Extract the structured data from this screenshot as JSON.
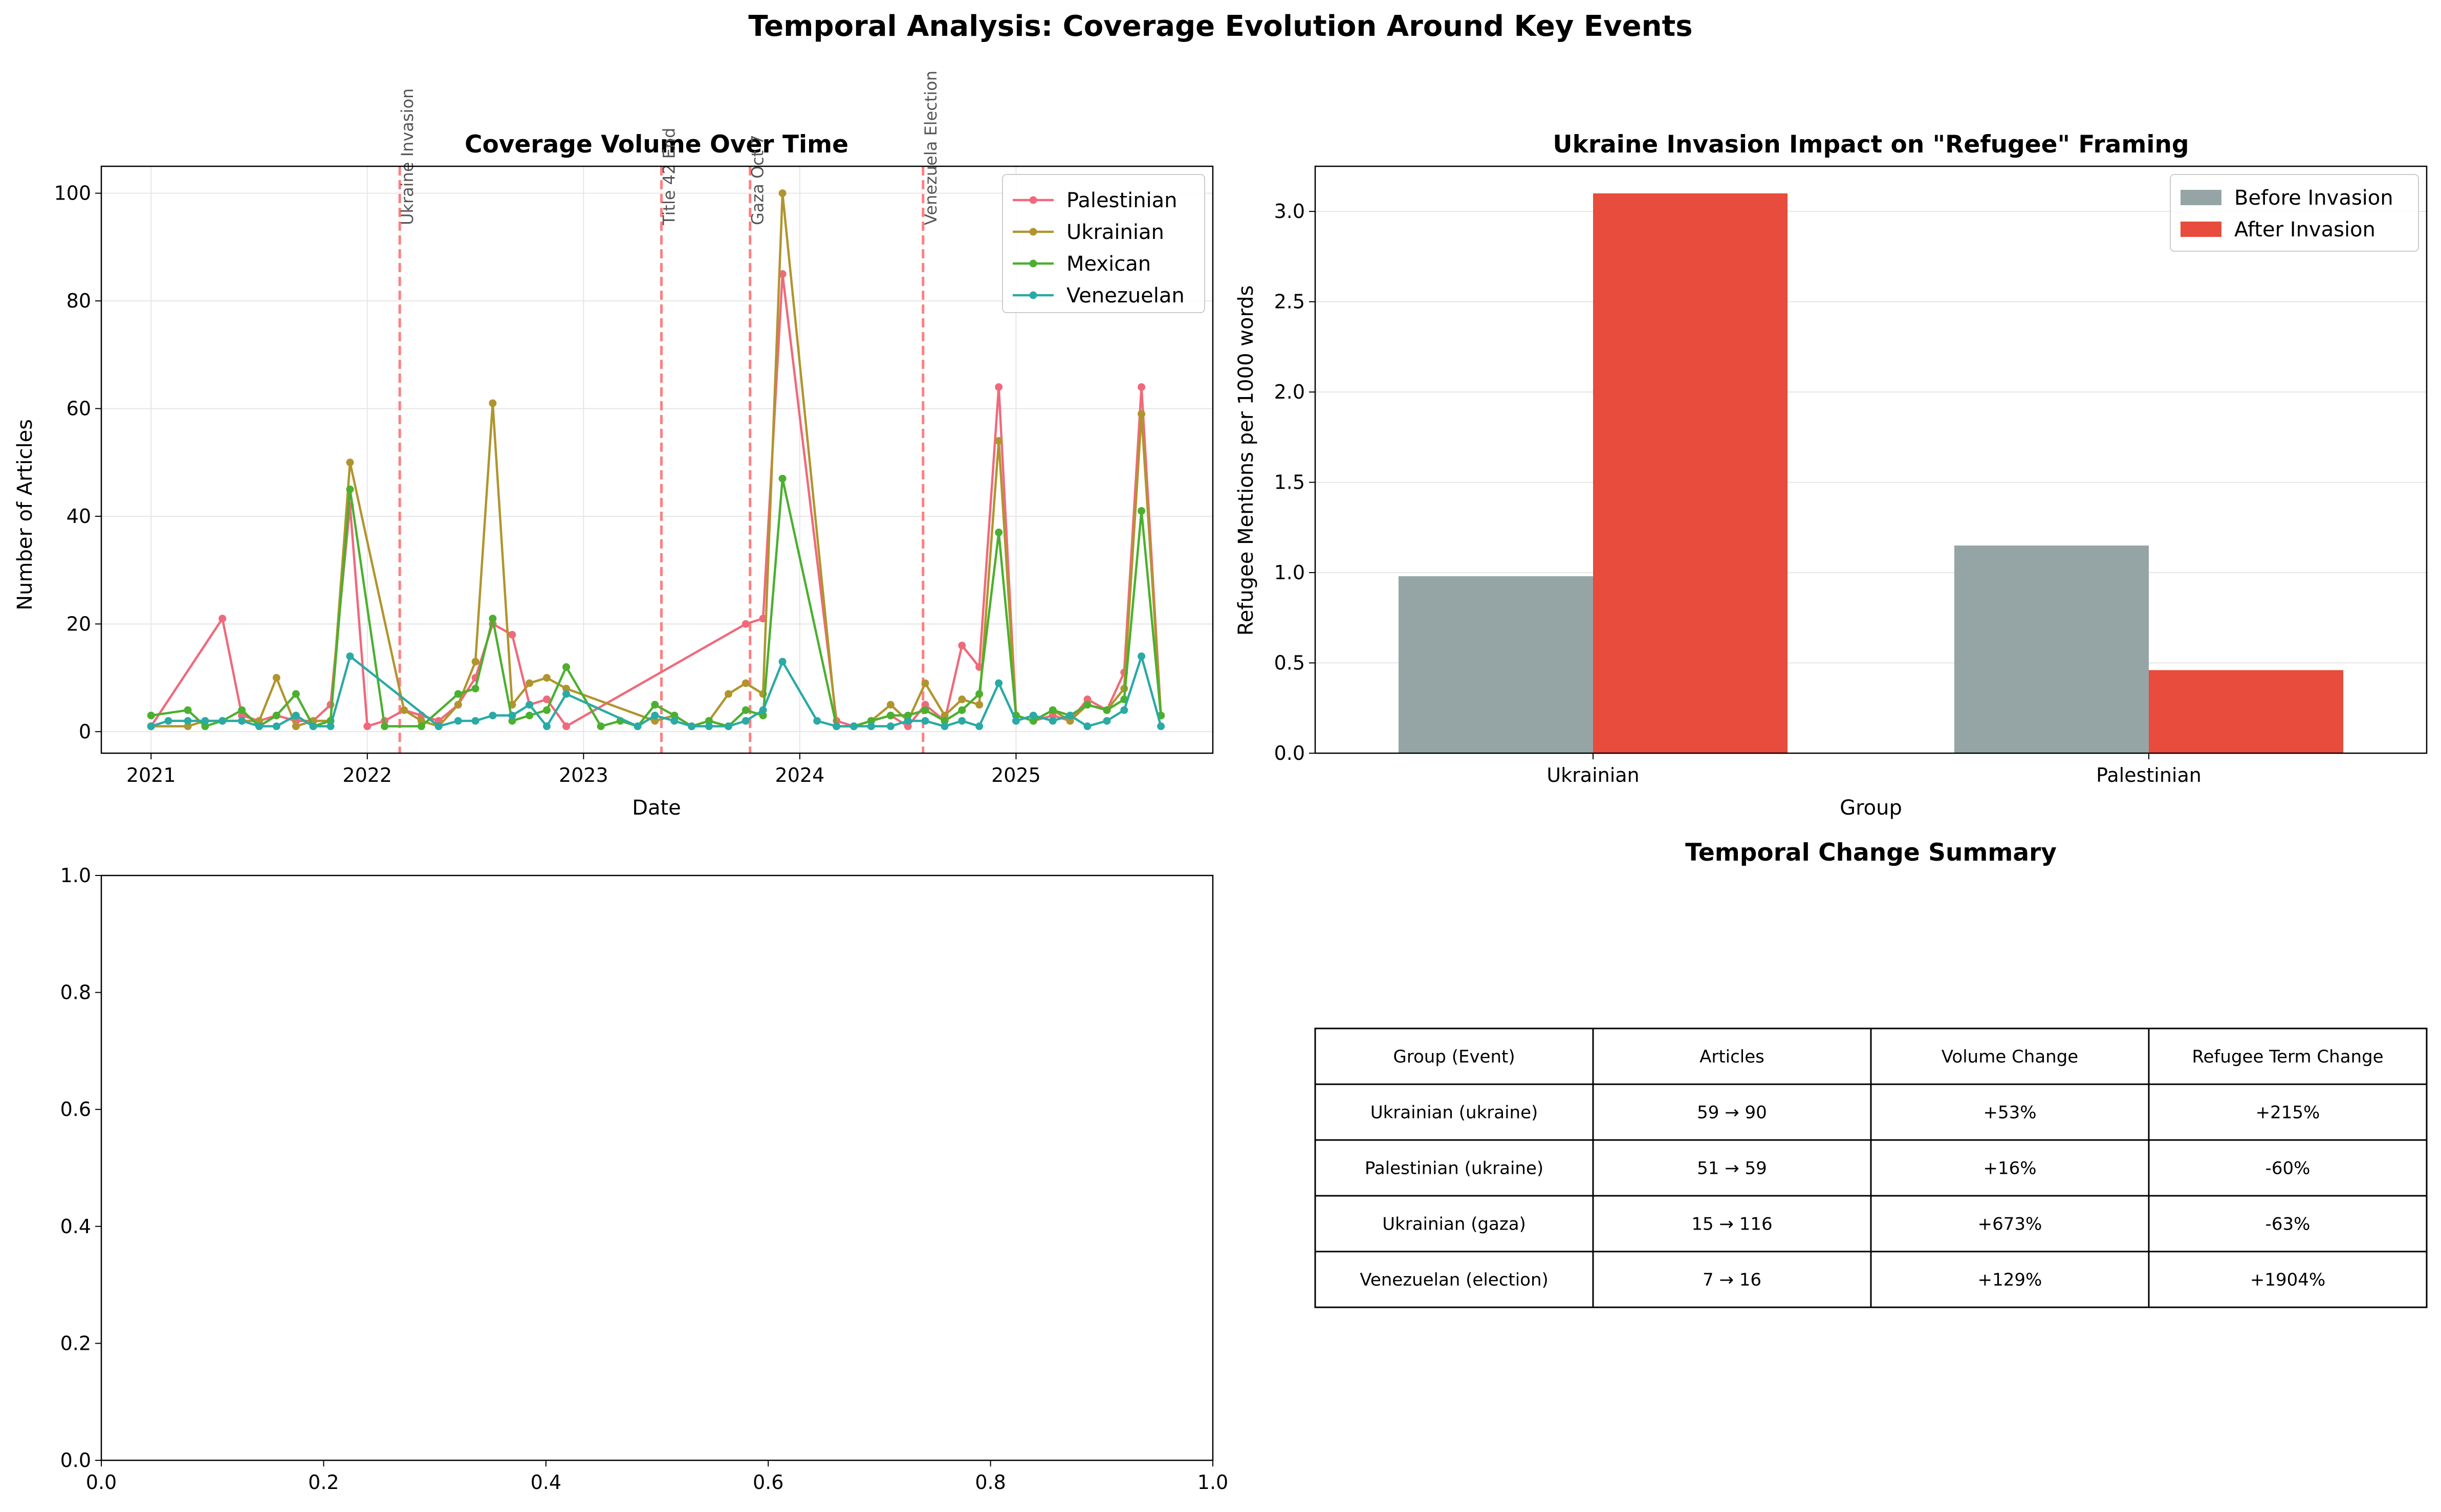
{
  "suptitle": "Temporal Analysis: Coverage Evolution Around Key Events",
  "colors": {
    "palestinian": "#f0697b",
    "ukrainian": "#b0952e",
    "mexican": "#4bb02f",
    "venezuelan": "#2aaaa5",
    "before": "#95a5a6",
    "after": "#e74c3c",
    "event_line": "#ff7f7f",
    "grid": "#e6e6e6"
  },
  "chart_data": [
    {
      "type": "line",
      "title": "Coverage Volume Over Time",
      "xlabel": "Date",
      "ylabel": "Number of Articles",
      "xlim": [
        2020.77,
        2025.91
      ],
      "ylim": [
        -4,
        105
      ],
      "xticks": [
        2021,
        2022,
        2023,
        2024,
        2025
      ],
      "xtick_labels": [
        "2021",
        "2022",
        "2023",
        "2024",
        "2025"
      ],
      "yticks": [
        0,
        20,
        40,
        60,
        80,
        100
      ],
      "ytick_labels": [
        "0",
        "20",
        "40",
        "60",
        "80",
        "100"
      ],
      "grid": true,
      "legend_position": "top-right",
      "events": [
        {
          "label": "Ukraine Invasion",
          "x": 2022.15
        },
        {
          "label": "Title 42 End",
          "x": 2023.36
        },
        {
          "label": "Gaza Oct 7",
          "x": 2023.77
        },
        {
          "label": "Venezuela Election",
          "x": 2024.57
        }
      ],
      "series": [
        {
          "name": "Palestinian",
          "color_key": "palestinian",
          "points": [
            [
              2021.0,
              1
            ],
            [
              2021.33,
              21
            ],
            [
              2021.42,
              3
            ],
            [
              2021.5,
              2
            ],
            [
              2021.58,
              3
            ],
            [
              2021.67,
              2
            ],
            [
              2021.75,
              2
            ],
            [
              2021.83,
              5
            ],
            [
              2021.92,
              42
            ],
            [
              2022.0,
              1
            ],
            [
              2022.08,
              2
            ],
            [
              2022.17,
              4
            ],
            [
              2022.25,
              3
            ],
            [
              2022.33,
              2
            ],
            [
              2022.42,
              5
            ],
            [
              2022.5,
              10
            ],
            [
              2022.58,
              20
            ],
            [
              2022.67,
              18
            ],
            [
              2022.75,
              5
            ],
            [
              2022.83,
              6
            ],
            [
              2022.92,
              1
            ],
            [
              2023.75,
              20
            ],
            [
              2023.83,
              21
            ],
            [
              2023.92,
              85
            ],
            [
              2024.17,
              2
            ],
            [
              2024.25,
              1
            ],
            [
              2024.33,
              2
            ],
            [
              2024.42,
              3
            ],
            [
              2024.5,
              1
            ],
            [
              2024.58,
              5
            ],
            [
              2024.67,
              2
            ],
            [
              2024.75,
              16
            ],
            [
              2024.83,
              12
            ],
            [
              2024.92,
              64
            ],
            [
              2025.0,
              3
            ],
            [
              2025.08,
              2
            ],
            [
              2025.17,
              3
            ],
            [
              2025.25,
              2
            ],
            [
              2025.33,
              6
            ],
            [
              2025.42,
              4
            ],
            [
              2025.5,
              11
            ],
            [
              2025.58,
              64
            ],
            [
              2025.67,
              3
            ]
          ]
        },
        {
          "name": "Ukrainian",
          "color_key": "ukrainian",
          "points": [
            [
              2021.0,
              1
            ],
            [
              2021.17,
              1
            ],
            [
              2021.25,
              2
            ],
            [
              2021.33,
              2
            ],
            [
              2021.42,
              2
            ],
            [
              2021.5,
              2
            ],
            [
              2021.58,
              10
            ],
            [
              2021.67,
              1
            ],
            [
              2021.75,
              2
            ],
            [
              2021.83,
              2
            ],
            [
              2021.92,
              50
            ],
            [
              2022.17,
              4
            ],
            [
              2022.25,
              2
            ],
            [
              2022.33,
              1
            ],
            [
              2022.42,
              5
            ],
            [
              2022.5,
              13
            ],
            [
              2022.58,
              61
            ],
            [
              2022.67,
              5
            ],
            [
              2022.75,
              9
            ],
            [
              2022.83,
              10
            ],
            [
              2022.92,
              8
            ],
            [
              2023.33,
              2
            ],
            [
              2023.42,
              3
            ],
            [
              2023.5,
              1
            ],
            [
              2023.58,
              2
            ],
            [
              2023.67,
              7
            ],
            [
              2023.75,
              9
            ],
            [
              2023.83,
              7
            ],
            [
              2023.92,
              100
            ],
            [
              2024.17,
              1
            ],
            [
              2024.25,
              1
            ],
            [
              2024.33,
              2
            ],
            [
              2024.42,
              5
            ],
            [
              2024.5,
              2
            ],
            [
              2024.58,
              9
            ],
            [
              2024.67,
              3
            ],
            [
              2024.75,
              6
            ],
            [
              2024.83,
              5
            ],
            [
              2024.92,
              54
            ],
            [
              2025.0,
              3
            ],
            [
              2025.08,
              2
            ],
            [
              2025.17,
              4
            ],
            [
              2025.25,
              2
            ],
            [
              2025.33,
              5
            ],
            [
              2025.42,
              4
            ],
            [
              2025.5,
              8
            ],
            [
              2025.58,
              59
            ],
            [
              2025.67,
              3
            ]
          ]
        },
        {
          "name": "Mexican",
          "color_key": "mexican",
          "points": [
            [
              2021.0,
              3
            ],
            [
              2021.17,
              4
            ],
            [
              2021.25,
              1
            ],
            [
              2021.33,
              2
            ],
            [
              2021.42,
              4
            ],
            [
              2021.5,
              1
            ],
            [
              2021.58,
              3
            ],
            [
              2021.67,
              7
            ],
            [
              2021.75,
              1
            ],
            [
              2021.83,
              2
            ],
            [
              2021.92,
              45
            ],
            [
              2022.08,
              1
            ],
            [
              2022.25,
              1
            ],
            [
              2022.42,
              7
            ],
            [
              2022.5,
              8
            ],
            [
              2022.58,
              21
            ],
            [
              2022.67,
              2
            ],
            [
              2022.75,
              3
            ],
            [
              2022.83,
              4
            ],
            [
              2022.92,
              12
            ],
            [
              2023.08,
              1
            ],
            [
              2023.17,
              2
            ],
            [
              2023.25,
              1
            ],
            [
              2023.33,
              5
            ],
            [
              2023.42,
              3
            ],
            [
              2023.5,
              1
            ],
            [
              2023.58,
              2
            ],
            [
              2023.67,
              1
            ],
            [
              2023.75,
              4
            ],
            [
              2023.83,
              3
            ],
            [
              2023.92,
              47
            ],
            [
              2024.17,
              1
            ],
            [
              2024.25,
              1
            ],
            [
              2024.33,
              2
            ],
            [
              2024.42,
              3
            ],
            [
              2024.5,
              3
            ],
            [
              2024.58,
              4
            ],
            [
              2024.67,
              2
            ],
            [
              2024.75,
              4
            ],
            [
              2024.83,
              7
            ],
            [
              2024.92,
              37
            ],
            [
              2025.0,
              3
            ],
            [
              2025.08,
              2
            ],
            [
              2025.17,
              4
            ],
            [
              2025.25,
              3
            ],
            [
              2025.33,
              5
            ],
            [
              2025.42,
              4
            ],
            [
              2025.5,
              6
            ],
            [
              2025.58,
              41
            ],
            [
              2025.67,
              3
            ]
          ]
        },
        {
          "name": "Venezuelan",
          "color_key": "venezuelan",
          "points": [
            [
              2021.0,
              1
            ],
            [
              2021.08,
              2
            ],
            [
              2021.17,
              2
            ],
            [
              2021.25,
              2
            ],
            [
              2021.33,
              2
            ],
            [
              2021.42,
              2
            ],
            [
              2021.5,
              1
            ],
            [
              2021.58,
              1
            ],
            [
              2021.67,
              3
            ],
            [
              2021.75,
              1
            ],
            [
              2021.83,
              1
            ],
            [
              2021.92,
              14
            ],
            [
              2022.33,
              1
            ],
            [
              2022.42,
              2
            ],
            [
              2022.5,
              2
            ],
            [
              2022.58,
              3
            ],
            [
              2022.67,
              3
            ],
            [
              2022.75,
              5
            ],
            [
              2022.83,
              1
            ],
            [
              2022.92,
              7
            ],
            [
              2023.25,
              1
            ],
            [
              2023.33,
              3
            ],
            [
              2023.42,
              2
            ],
            [
              2023.5,
              1
            ],
            [
              2023.58,
              1
            ],
            [
              2023.67,
              1
            ],
            [
              2023.75,
              2
            ],
            [
              2023.83,
              4
            ],
            [
              2023.92,
              13
            ],
            [
              2024.08,
              2
            ],
            [
              2024.17,
              1
            ],
            [
              2024.25,
              1
            ],
            [
              2024.33,
              1
            ],
            [
              2024.42,
              1
            ],
            [
              2024.5,
              2
            ],
            [
              2024.58,
              2
            ],
            [
              2024.67,
              1
            ],
            [
              2024.75,
              2
            ],
            [
              2024.83,
              1
            ],
            [
              2024.92,
              9
            ],
            [
              2025.0,
              2
            ],
            [
              2025.08,
              3
            ],
            [
              2025.17,
              2
            ],
            [
              2025.25,
              3
            ],
            [
              2025.33,
              1
            ],
            [
              2025.42,
              2
            ],
            [
              2025.5,
              4
            ],
            [
              2025.58,
              14
            ],
            [
              2025.67,
              1
            ]
          ]
        }
      ]
    },
    {
      "type": "bar",
      "title": "Ukraine Invasion Impact on \"Refugee\" Framing",
      "xlabel": "Group",
      "ylabel": "Refugee Mentions per 1000 words",
      "categories": [
        "Ukrainian",
        "Palestinian"
      ],
      "ylim": [
        0,
        3.25
      ],
      "yticks": [
        0.0,
        0.5,
        1.0,
        1.5,
        2.0,
        2.5,
        3.0
      ],
      "ytick_labels": [
        "0.0",
        "0.5",
        "1.0",
        "1.5",
        "2.0",
        "2.5",
        "3.0"
      ],
      "grid": true,
      "legend_position": "top-right",
      "series": [
        {
          "name": "Before Invasion",
          "color_key": "before",
          "values": [
            0.98,
            1.15
          ]
        },
        {
          "name": "After Invasion",
          "color_key": "after",
          "values": [
            3.1,
            0.46
          ]
        }
      ]
    },
    {
      "type": "line",
      "title": "",
      "series": [],
      "xlim": [
        0,
        1
      ],
      "ylim": [
        0,
        1
      ],
      "xticks": [
        0.0,
        0.2,
        0.4,
        0.6,
        0.8,
        1.0
      ],
      "xtick_labels": [
        "0.0",
        "0.2",
        "0.4",
        "0.6",
        "0.8",
        "1.0"
      ],
      "yticks": [
        0.0,
        0.2,
        0.4,
        0.6,
        0.8,
        1.0
      ],
      "ytick_labels": [
        "0.0",
        "0.2",
        "0.4",
        "0.6",
        "0.8",
        "1.0"
      ]
    },
    {
      "type": "table",
      "title": "Temporal Change Summary",
      "columns": [
        "Group (Event)",
        "Articles",
        "Volume Change",
        "Refugee Term Change"
      ],
      "rows": [
        [
          "Ukrainian (ukraine)",
          "59 → 90",
          "+53%",
          "+215%"
        ],
        [
          "Palestinian (ukraine)",
          "51 → 59",
          "+16%",
          "-60%"
        ],
        [
          "Ukrainian (gaza)",
          "15 → 116",
          "+673%",
          "-63%"
        ],
        [
          "Venezuelan (election)",
          "7 → 16",
          "+129%",
          "+1904%"
        ]
      ]
    }
  ]
}
